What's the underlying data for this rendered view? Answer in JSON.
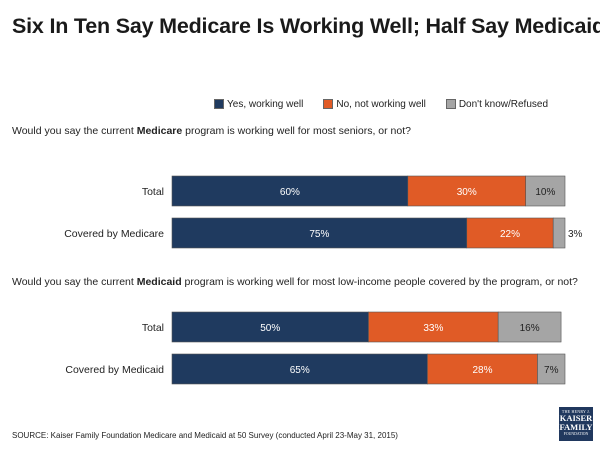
{
  "title": "Six In Ten Say Medicare Is Working Well; Half Say Medicaid Is",
  "legend": [
    {
      "label": "Yes, working well",
      "color": "#1f3a5f"
    },
    {
      "label": "No, not working well",
      "color": "#e05b26"
    },
    {
      "label": "Don't know/Refused",
      "color": "#a5a5a5"
    }
  ],
  "questions": {
    "medicare": {
      "before": "Would you say the current ",
      "bold": "Medicare",
      "after": " program is working well for most seniors, or not?"
    },
    "medicaid": {
      "before": "Would you say the current ",
      "bold": "Medicaid",
      "after": " program is working well for most low-income people covered by the program, or not?"
    }
  },
  "chart_data": [
    {
      "type": "bar",
      "orientation": "horizontal",
      "stacked": true,
      "question": "medicare",
      "categories": [
        "Total",
        "Covered by Medicare"
      ],
      "series": [
        {
          "name": "Yes, working well",
          "values": [
            60,
            75
          ],
          "labels": [
            "60%",
            "75%"
          ]
        },
        {
          "name": "No, not working well",
          "values": [
            30,
            22
          ],
          "labels": [
            "30%",
            "22%"
          ]
        },
        {
          "name": "Don't know/Refused",
          "values": [
            10,
            3
          ],
          "labels": [
            "10%",
            "3%"
          ]
        }
      ],
      "xlim": [
        0,
        100
      ]
    },
    {
      "type": "bar",
      "orientation": "horizontal",
      "stacked": true,
      "question": "medicaid",
      "categories": [
        "Total",
        "Covered by Medicaid"
      ],
      "series": [
        {
          "name": "Yes, working well",
          "values": [
            50,
            65
          ],
          "labels": [
            "50%",
            "65%"
          ]
        },
        {
          "name": "No, not working well",
          "values": [
            33,
            28
          ],
          "labels": [
            "33%",
            "28%"
          ]
        },
        {
          "name": "Don't know/Refused",
          "values": [
            16,
            7
          ],
          "labels": [
            "16%",
            "7%"
          ]
        }
      ],
      "xlim": [
        0,
        100
      ]
    }
  ],
  "source": "SOURCE: Kaiser Family Foundation Medicare and Medicaid at 50 Survey (conducted April 23-May 31, 2015)",
  "logo": {
    "line1": "THE HENRY J.",
    "line2a": "KAISER",
    "line2b": "FAMILY",
    "line3": "FOUNDATION"
  }
}
